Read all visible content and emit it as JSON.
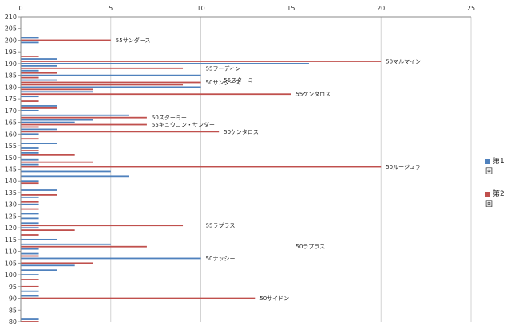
{
  "chart_data": {
    "type": "bar",
    "orientation": "horizontal",
    "title": "",
    "xlabel": "",
    "ylabel": "",
    "xlim": [
      0,
      25
    ],
    "ylim": [
      80,
      210
    ],
    "x_ticks": [
      0,
      5,
      10,
      15,
      20,
      25
    ],
    "y_ticks": [
      80,
      85,
      90,
      95,
      100,
      105,
      110,
      115,
      120,
      125,
      130,
      135,
      140,
      145,
      150,
      155,
      160,
      165,
      170,
      175,
      180,
      185,
      190,
      195,
      200,
      205,
      210
    ],
    "grid": "vertical",
    "legend_position": "right",
    "series": [
      {
        "name": "第1回",
        "color": "#4f81bd",
        "points": [
          [
            81,
            1
          ],
          [
            91,
            1
          ],
          [
            93,
            1
          ],
          [
            100,
            1
          ],
          [
            102,
            2
          ],
          [
            104,
            3
          ],
          [
            107,
            10
          ],
          [
            109,
            1
          ],
          [
            111,
            1
          ],
          [
            113,
            5
          ],
          [
            115,
            2
          ],
          [
            120,
            1
          ],
          [
            122,
            1
          ],
          [
            124,
            1
          ],
          [
            126,
            1
          ],
          [
            130,
            1
          ],
          [
            133,
            1
          ],
          [
            136,
            2
          ],
          [
            140,
            1
          ],
          [
            142,
            6
          ],
          [
            144,
            5
          ],
          [
            147,
            1
          ],
          [
            149,
            1
          ],
          [
            152,
            1
          ],
          [
            154,
            1
          ],
          [
            156,
            2
          ],
          [
            160,
            1
          ],
          [
            162,
            2
          ],
          [
            165,
            3
          ],
          [
            166,
            4
          ],
          [
            168,
            6
          ],
          [
            170,
            1
          ],
          [
            172,
            2
          ],
          [
            176,
            1
          ],
          [
            178,
            4
          ],
          [
            180,
            10
          ],
          [
            183,
            2
          ],
          [
            185,
            10
          ],
          [
            187,
            1
          ],
          [
            189,
            2
          ],
          [
            190,
            16
          ],
          [
            192,
            2
          ],
          [
            199,
            1
          ],
          [
            201,
            1
          ]
        ]
      },
      {
        "name": "第2回",
        "color": "#c0504d",
        "points": [
          [
            80,
            1
          ],
          [
            90,
            13
          ],
          [
            95,
            1
          ],
          [
            98,
            1
          ],
          [
            105,
            4
          ],
          [
            108,
            1
          ],
          [
            112,
            7
          ],
          [
            117,
            1
          ],
          [
            119,
            3
          ],
          [
            121,
            9
          ],
          [
            128,
            1
          ],
          [
            131,
            1
          ],
          [
            134,
            2
          ],
          [
            139,
            1
          ],
          [
            146,
            20
          ],
          [
            148,
            4
          ],
          [
            151,
            3
          ],
          [
            153,
            1
          ],
          [
            158,
            1
          ],
          [
            161,
            11
          ],
          [
            163,
            1
          ],
          [
            164,
            7
          ],
          [
            167,
            7
          ],
          [
            171,
            2
          ],
          [
            174,
            1
          ],
          [
            177,
            15
          ],
          [
            179,
            4
          ],
          [
            181,
            9
          ],
          [
            182,
            10
          ],
          [
            184,
            1
          ],
          [
            186,
            2
          ],
          [
            188,
            9
          ],
          [
            191,
            20
          ],
          [
            193,
            1
          ],
          [
            200,
            5
          ]
        ]
      }
    ],
    "annotations": [
      {
        "text": "55サンダース",
        "x": 5,
        "y": 200
      },
      {
        "text": "50マルマイン",
        "x": 20,
        "y": 191
      },
      {
        "text": "55フーディン",
        "x": 10,
        "y": 188
      },
      {
        "text": "55スターミー",
        "x": 11,
        "y": 183
      },
      {
        "text": "50サンダース",
        "x": 10,
        "y": 182
      },
      {
        "text": "55ケンタロス",
        "x": 15,
        "y": 177
      },
      {
        "text": "50スターミー",
        "x": 7,
        "y": 167
      },
      {
        "text": "55キュウコン・サンダー",
        "x": 7,
        "y": 164
      },
      {
        "text": "50ケンタロス",
        "x": 11,
        "y": 161
      },
      {
        "text": "50ルージュラ",
        "x": 20,
        "y": 146
      },
      {
        "text": "55ラプラス",
        "x": 10,
        "y": 121
      },
      {
        "text": "50ラプラス",
        "x": 15,
        "y": 112
      },
      {
        "text": "50ナッシー",
        "x": 10,
        "y": 107
      },
      {
        "text": "50サイドン",
        "x": 13,
        "y": 90
      }
    ]
  },
  "legend": [
    {
      "label": "第1回",
      "color": "#4f81bd"
    },
    {
      "label": "第2回",
      "color": "#c0504d"
    }
  ]
}
